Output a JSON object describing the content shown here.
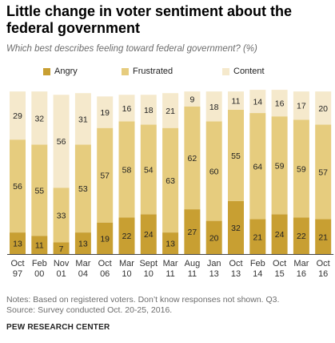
{
  "title": "Little change in voter sentiment  about the federal government",
  "subtitle": "Which best describes feeling toward federal government? (%)",
  "notes": {
    "line1": "Notes: Based on registered voters. Don’t know responses not shown. Q3.",
    "line2": "Source: Survey conducted Oct. 20-25, 2016."
  },
  "source": "PEW RESEARCH CENTER",
  "colors": {
    "angry": "#c89f32",
    "frustrated": "#e6cc7e",
    "content": "#f5e9cc",
    "label": "#222222",
    "axis": "#444444"
  },
  "chart_data": {
    "type": "bar",
    "stacked": true,
    "categories": [
      "Oct 97",
      "Feb 00",
      "Nov 01",
      "Mar 04",
      "Oct 06",
      "Mar 10",
      "Sept 10",
      "Mar 11",
      "Aug 11",
      "Jan 13",
      "Oct 13",
      "Feb 14",
      "Oct 15",
      "Mar 16",
      "Oct 16"
    ],
    "category_lines": [
      [
        "Oct",
        "97"
      ],
      [
        "Feb",
        "00"
      ],
      [
        "Nov",
        "01"
      ],
      [
        "Mar",
        "04"
      ],
      [
        "Oct",
        "06"
      ],
      [
        "Mar",
        "10"
      ],
      [
        "Sept",
        "10"
      ],
      [
        "Mar",
        "11"
      ],
      [
        "Aug",
        "11"
      ],
      [
        "Jan",
        "13"
      ],
      [
        "Oct",
        "13"
      ],
      [
        "Feb",
        "14"
      ],
      [
        "Oct",
        "15"
      ],
      [
        "Mar",
        "16"
      ],
      [
        "Oct",
        "16"
      ]
    ],
    "series": [
      {
        "name": "Angry",
        "key": "angry",
        "values": [
          13,
          11,
          7,
          13,
          19,
          22,
          24,
          13,
          27,
          20,
          32,
          21,
          24,
          22,
          21
        ]
      },
      {
        "name": "Frustrated",
        "key": "frustrated",
        "values": [
          56,
          55,
          33,
          53,
          57,
          58,
          54,
          63,
          62,
          60,
          55,
          64,
          59,
          59,
          57
        ]
      },
      {
        "name": "Content",
        "key": "content",
        "values": [
          29,
          32,
          56,
          31,
          19,
          16,
          18,
          21,
          9,
          18,
          11,
          14,
          16,
          17,
          20
        ]
      }
    ],
    "legend_position": "top",
    "grid": false
  }
}
